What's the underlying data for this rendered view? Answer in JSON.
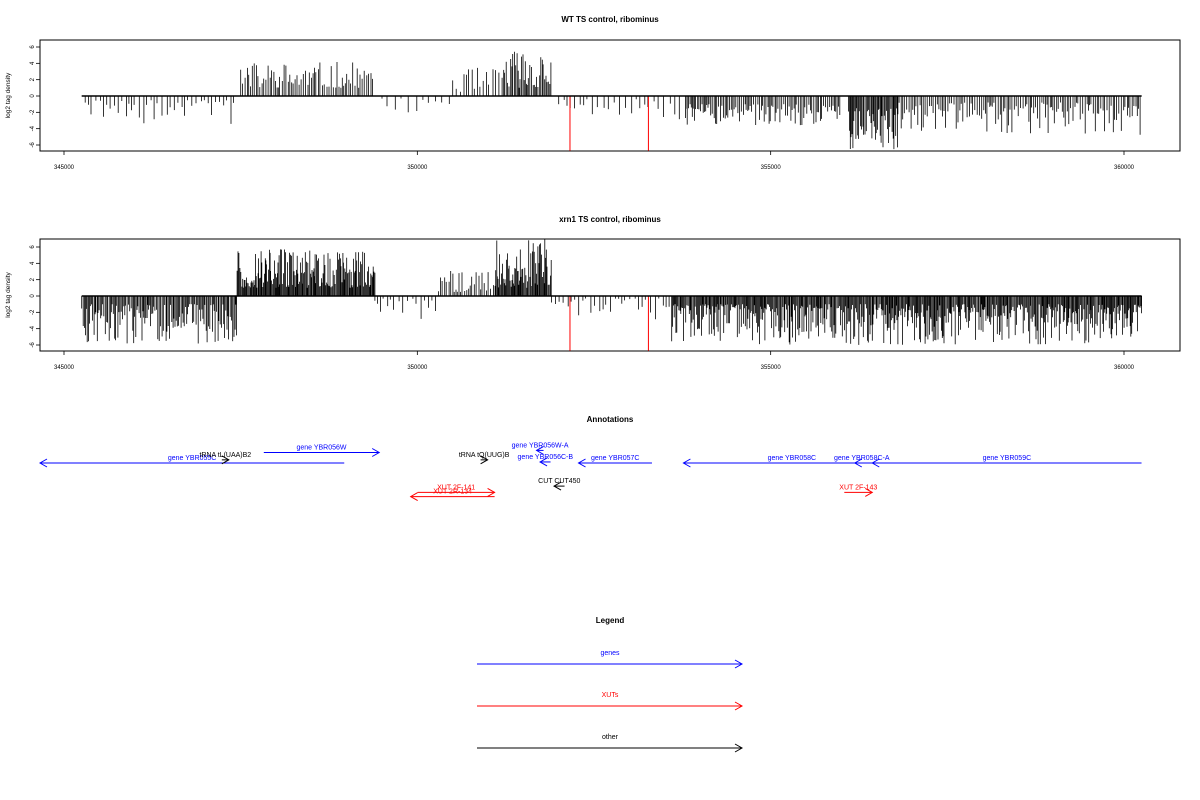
{
  "colors": {
    "blue": "#0000ff",
    "red": "#ff0000",
    "black": "#000000"
  },
  "chart_data": [
    {
      "type": "bar",
      "title": "WT TS control, ribominus",
      "ylabel": "log2 tag density",
      "xlim": [
        344500,
        360800
      ],
      "ylim": [
        -6.5,
        7.2
      ],
      "x_ticks": [
        345000,
        350000,
        355000,
        360000
      ],
      "y_ticks": [
        -6,
        -4,
        -2,
        0,
        2,
        4,
        6
      ],
      "grid": false,
      "baseline_range": [
        345250,
        360250
      ],
      "red_marks": [
        352160,
        353270
      ],
      "density_segments": [
        {
          "from": 345300,
          "to": 347400,
          "sign": -1,
          "min": 0.5,
          "max": 3.5,
          "step": 55
        },
        {
          "from": 347500,
          "to": 349400,
          "sign": 1,
          "min": 1.0,
          "max": 4.2,
          "step": 28
        },
        {
          "from": 349500,
          "to": 350500,
          "sign": -1,
          "min": 0.3,
          "max": 2.0,
          "step": 90
        },
        {
          "from": 350500,
          "to": 351200,
          "sign": 1,
          "min": 0.5,
          "max": 3.5,
          "step": 45
        },
        {
          "from": 351200,
          "to": 351900,
          "sign": 1,
          "min": 1.0,
          "max": 6.0,
          "step": 18
        },
        {
          "from": 352000,
          "to": 352400,
          "sign": -1,
          "min": 0.3,
          "max": 1.6,
          "step": 60
        },
        {
          "from": 352400,
          "to": 353800,
          "sign": -1,
          "min": 0.4,
          "max": 3.0,
          "step": 70
        },
        {
          "from": 353800,
          "to": 356000,
          "sign": -1,
          "min": 1.0,
          "max": 3.6,
          "step": 22
        },
        {
          "from": 356100,
          "to": 356800,
          "sign": -1,
          "min": 1.5,
          "max": 6.5,
          "step": 14
        },
        {
          "from": 356800,
          "to": 360250,
          "sign": -1,
          "min": 0.8,
          "max": 4.8,
          "step": 26
        }
      ]
    },
    {
      "type": "bar",
      "title": "xrn1 TS control, ribominus",
      "ylabel": "log2 tag density",
      "xlim": [
        344500,
        360800
      ],
      "ylim": [
        -6.5,
        7.2
      ],
      "x_ticks": [
        345000,
        350000,
        355000,
        360000
      ],
      "y_ticks": [
        -6,
        -4,
        -2,
        0,
        2,
        4,
        6
      ],
      "grid": false,
      "baseline_range": [
        345250,
        360250
      ],
      "red_marks": [
        352160,
        353270
      ],
      "density_segments": [
        {
          "from": 345250,
          "to": 347450,
          "sign": -1,
          "min": 1.0,
          "max": 6.0,
          "step": 16
        },
        {
          "from": 347450,
          "to": 349400,
          "sign": 1,
          "min": 1.0,
          "max": 6.0,
          "step": 12
        },
        {
          "from": 349400,
          "to": 350300,
          "sign": -1,
          "min": 0.3,
          "max": 3.0,
          "step": 60
        },
        {
          "from": 350300,
          "to": 351100,
          "sign": 1,
          "min": 0.5,
          "max": 3.2,
          "step": 30
        },
        {
          "from": 351100,
          "to": 351900,
          "sign": 1,
          "min": 1.0,
          "max": 7.0,
          "step": 12
        },
        {
          "from": 351900,
          "to": 353600,
          "sign": -1,
          "min": 0.3,
          "max": 3.0,
          "step": 55
        },
        {
          "from": 353600,
          "to": 360250,
          "sign": -1,
          "min": 1.0,
          "max": 6.0,
          "step": 13
        }
      ]
    }
  ],
  "annotations": {
    "title": "Annotations",
    "xlim": [
      344500,
      360800
    ],
    "items": [
      {
        "label": "gene YBR055C",
        "color": "blue",
        "from": 348850,
        "to": 344500,
        "row": 0
      },
      {
        "label": "gene YBR056W",
        "color": "blue",
        "from": 347700,
        "to": 349350,
        "row": 1
      },
      {
        "label": "tRNA tL(UAA)B2",
        "color": "black",
        "from": 347100,
        "to": 347200,
        "row": 0.3
      },
      {
        "label": "gene YBR056W-A",
        "color": "blue",
        "from": 351700,
        "to": 351600,
        "row": 1.2
      },
      {
        "label": "gene YBR056C-B",
        "color": "blue",
        "from": 351800,
        "to": 351650,
        "row": 0.1
      },
      {
        "label": "tRNA tQ(UUG)B",
        "color": "black",
        "from": 350800,
        "to": 350900,
        "row": 0.3
      },
      {
        "label": "gene YBR057C",
        "color": "blue",
        "from": 353250,
        "to": 352200,
        "row": 0
      },
      {
        "label": "gene YBR058C",
        "color": "blue",
        "from": 356800,
        "to": 353700,
        "row": 0
      },
      {
        "label": "gene YBR058C-A",
        "color": "blue",
        "from": 356350,
        "to": 356150,
        "row": 0
      },
      {
        "label": "gene YBR059C",
        "color": "blue",
        "from": 360250,
        "to": 356400,
        "row": 0
      },
      {
        "label": "CUT CUT450",
        "color": "black",
        "from": 352000,
        "to": 351850,
        "row": -2.2
      },
      {
        "label": "XUT 2F-141",
        "color": "red",
        "from": 349900,
        "to": 351000,
        "row": -2.8
      },
      {
        "label": "XUT 2R-134",
        "color": "red",
        "from": 351000,
        "to": 349800,
        "row": -3.2
      },
      {
        "label": "XUT 2F-143",
        "color": "red",
        "from": 356000,
        "to": 356400,
        "row": -2.8
      }
    ]
  },
  "legend": {
    "title": "Legend",
    "entries": [
      {
        "label": "genes",
        "color": "blue"
      },
      {
        "label": "XUTs",
        "color": "red"
      },
      {
        "label": "other",
        "color": "black"
      }
    ]
  }
}
